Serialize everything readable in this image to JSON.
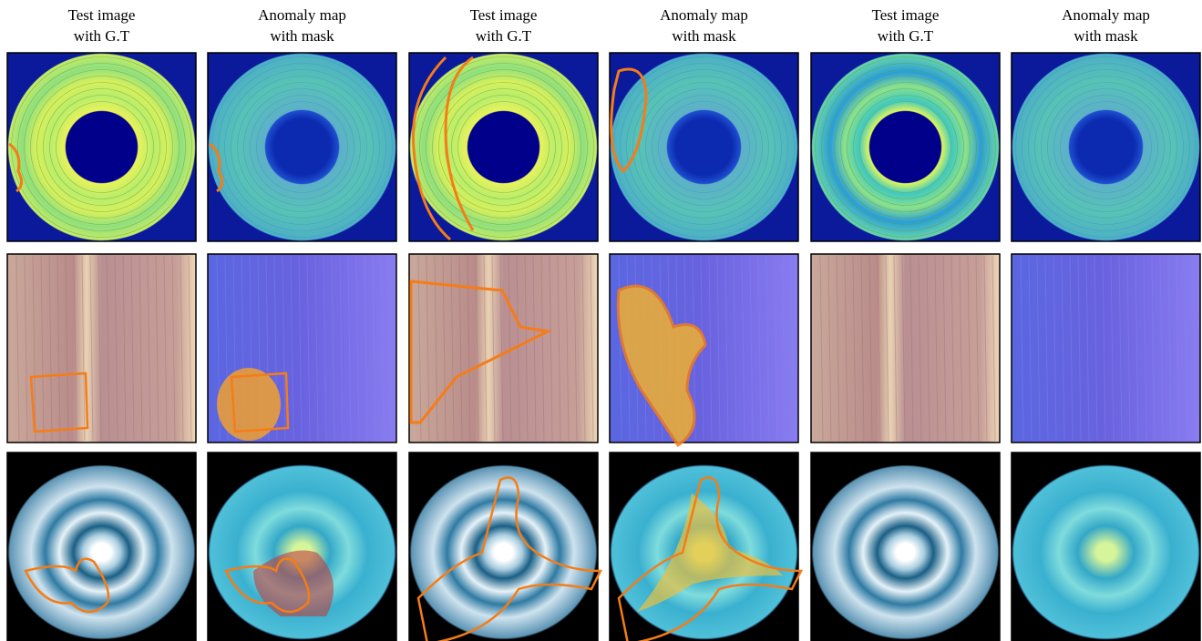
{
  "columns": [
    {
      "line1": "Test image",
      "line2": "with G.T"
    },
    {
      "line1": "Anomaly map",
      "line2": "with mask"
    },
    {
      "line1": "Test image",
      "line2": "with G.T"
    },
    {
      "line1": "Anomaly map",
      "line2": "with mask"
    },
    {
      "line1": "Test image",
      "line2": "with G.T"
    },
    {
      "line1": "Anomaly map",
      "line2": "with mask"
    }
  ]
}
